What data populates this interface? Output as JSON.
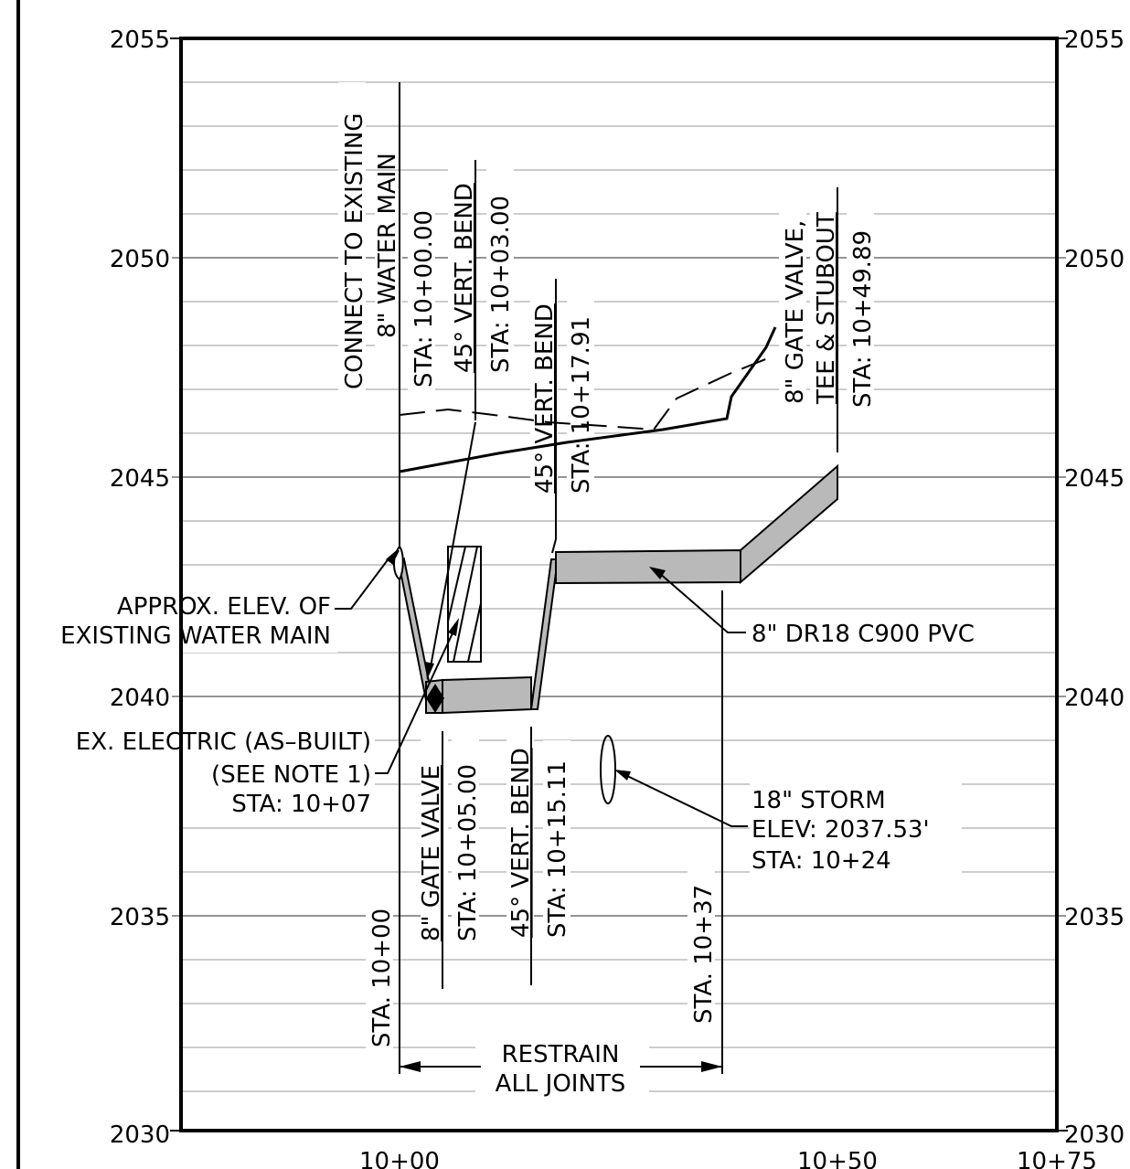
{
  "elevation_labels": {
    "left": [
      "2055",
      "2050",
      "2045",
      "2040",
      "2035",
      "2030"
    ],
    "right": [
      "2055",
      "2050",
      "2045",
      "2040",
      "2035",
      "2030"
    ]
  },
  "station_labels": [
    "10+00",
    "10+50",
    "10+75"
  ],
  "callouts": {
    "connect_line1": "CONNECT TO EXISTING",
    "connect_line2": "8\" WATER MAIN",
    "sta_1000": "STA: 10+00.00",
    "bend45_a": "45° VERT. BEND",
    "sta_1003": "STA: 10+03.00",
    "bend45_b": "45° VERT. BEND",
    "sta_101791": "STA: 10+17.91",
    "gate_tee_line1": "8\" GATE VALVE,",
    "gate_tee_line2": "TEE & STUBOUT",
    "sta_104989": "STA: 10+49.89",
    "approx_line1": "APPROX. ELEV. OF",
    "approx_line2": "EXISTING WATER MAIN",
    "pipe_label": "8\" DR18 C900 PVC",
    "electric_line1": "EX. ELECTRIC (AS–BUILT)",
    "electric_line2": "(SEE NOTE 1)",
    "electric_line3": "STA: 10+07",
    "gate_valve": "8\" GATE VALVE",
    "sta_1005": "STA: 10+05.00",
    "bend45_c": "45° VERT. BEND",
    "sta_101511": "STA: 10+15.11",
    "storm_line1": "18\" STORM",
    "storm_line2": "ELEV: 2037.53'",
    "storm_line3": "STA: 10+24",
    "sta_b_1000": "STA. 10+00",
    "sta_b_1037": "STA. 10+37",
    "restrain_line1": "RESTRAIN",
    "restrain_line2": "ALL JOINTS"
  },
  "profile_data": {
    "x_axis_stations": [
      "10+00",
      "10+50",
      "10+75"
    ],
    "y_range": [
      2030,
      2055
    ],
    "existing_main_elev": 2043.5,
    "storm_elev": 2037.53,
    "storm_station": "10+24"
  }
}
